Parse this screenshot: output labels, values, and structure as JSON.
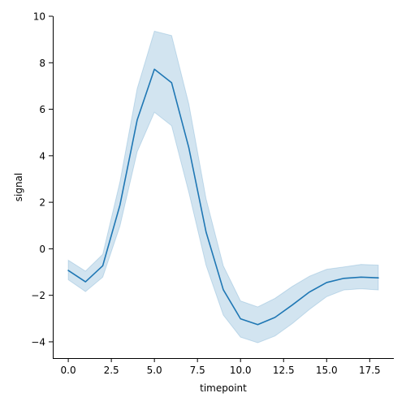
{
  "chart_data": {
    "type": "line",
    "xlabel": "timepoint",
    "ylabel": "signal",
    "xlim": [
      -0.9,
      18.9
    ],
    "ylim": [
      -4.7,
      10.0
    ],
    "xticks": [
      0.0,
      2.5,
      5.0,
      7.5,
      10.0,
      12.5,
      15.0,
      17.5
    ],
    "xtick_labels": [
      "0.0",
      "2.5",
      "5.0",
      "7.5",
      "10.0",
      "12.5",
      "15.0",
      "17.5"
    ],
    "yticks": [
      -4,
      -2,
      0,
      2,
      4,
      6,
      8,
      10
    ],
    "ytick_labels": [
      "−4",
      "−2",
      "0",
      "2",
      "4",
      "6",
      "8",
      "10"
    ],
    "grid": false,
    "series": [
      {
        "color": "#1f77b4",
        "band_color": "#1f77b4",
        "x": [
          0,
          1,
          2,
          3,
          4,
          5,
          6,
          7,
          8,
          9,
          10,
          11,
          12,
          13,
          14,
          15,
          16,
          17,
          18
        ],
        "y": [
          -0.93,
          -1.42,
          -0.73,
          1.88,
          5.54,
          7.72,
          7.14,
          4.34,
          0.72,
          -1.76,
          -3.01,
          -3.26,
          -2.95,
          -2.42,
          -1.86,
          -1.45,
          -1.27,
          -1.22,
          -1.25
        ],
        "y_lower": [
          -1.33,
          -1.84,
          -1.22,
          0.98,
          4.17,
          5.87,
          5.29,
          2.42,
          -0.71,
          -2.85,
          -3.8,
          -4.04,
          -3.75,
          -3.22,
          -2.61,
          -2.06,
          -1.77,
          -1.72,
          -1.77
        ],
        "y_upper": [
          -0.49,
          -0.96,
          -0.24,
          2.88,
          6.89,
          9.36,
          9.17,
          6.22,
          2.15,
          -0.73,
          -2.24,
          -2.5,
          -2.13,
          -1.62,
          -1.18,
          -0.88,
          -0.78,
          -0.67,
          -0.7
        ]
      }
    ]
  }
}
